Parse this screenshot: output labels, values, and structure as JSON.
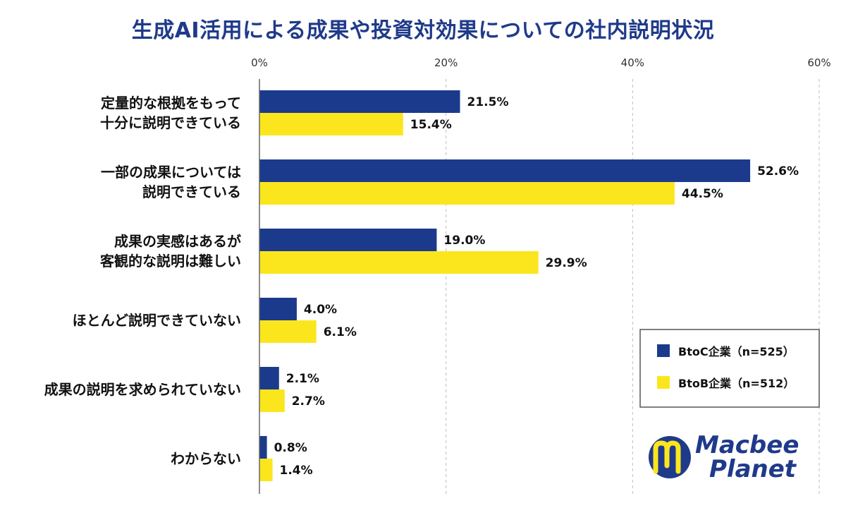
{
  "chart_data": {
    "type": "bar",
    "orientation": "horizontal",
    "title": "生成AI活用による成果や投資対効果についての社内説明状況",
    "categories": [
      [
        "定量的な根拠をもって",
        "十分に説明できている"
      ],
      [
        "一部の成果については",
        "説明できている"
      ],
      [
        "成果の実感はあるが",
        "客観的な説明は難しい"
      ],
      [
        "ほとんど説明できていない"
      ],
      [
        "成果の説明を求められていない"
      ],
      [
        "わからない"
      ]
    ],
    "series": [
      {
        "name": "BtoC企業（n=525）",
        "color": "#1b3a8c",
        "values": [
          21.5,
          52.6,
          19.0,
          4.0,
          2.1,
          0.8
        ]
      },
      {
        "name": "BtoB企業（n=512）",
        "color": "#fbe61e",
        "values": [
          15.4,
          44.5,
          29.9,
          6.1,
          2.7,
          1.4
        ]
      }
    ],
    "xlim": [
      0,
      60
    ],
    "xticks": [
      0,
      20,
      40,
      60
    ],
    "tick_suffix": "%",
    "value_suffix": "%",
    "grid": true,
    "grid_style": "dashed",
    "legend_position": "bottom-right"
  },
  "logo": {
    "line1": "Macbee",
    "line2": "Planet",
    "icon": "macbee-m-logo-icon",
    "color": "#1f3a8a",
    "accent": "#fbe61e"
  }
}
